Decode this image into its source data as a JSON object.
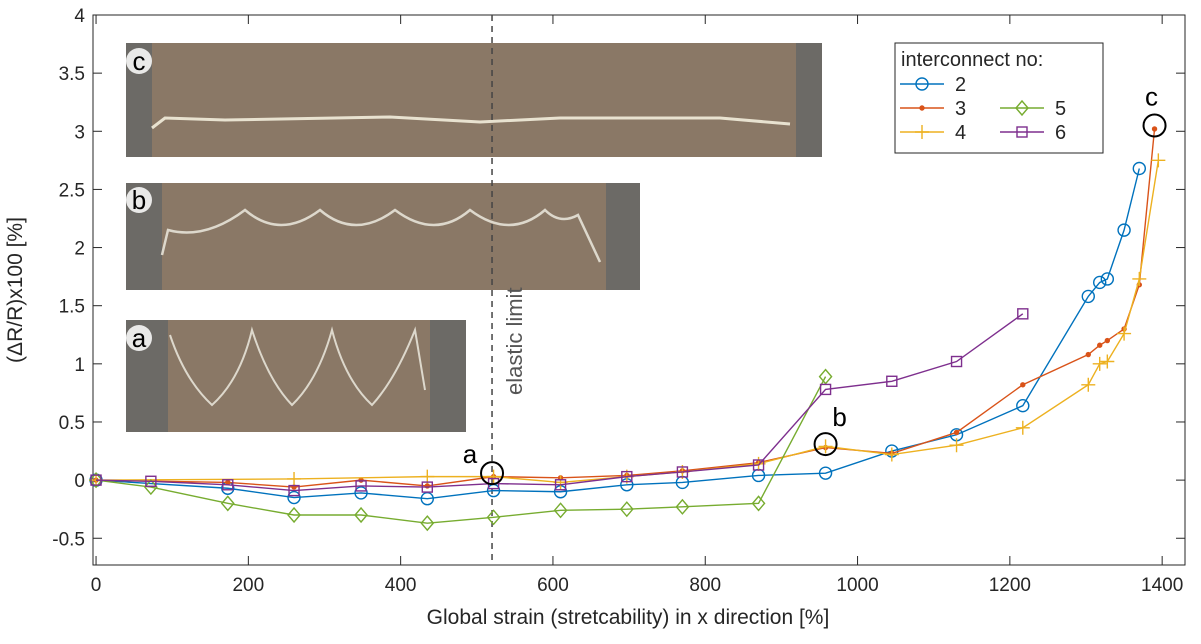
{
  "chart_data": {
    "type": "line",
    "xlabel": "Global strain (stretcability) in x direction [%]",
    "ylabel": "(ΔR/R)x100  [%]",
    "xlim": [
      -4,
      1430
    ],
    "ylim": [
      -0.73,
      4
    ],
    "xticks": [
      0,
      200,
      400,
      600,
      800,
      1000,
      1200,
      1400
    ],
    "yticks": [
      -0.5,
      0,
      0.5,
      1,
      1.5,
      2,
      2.5,
      3,
      3.5,
      4
    ],
    "grid": false,
    "legend_title": "interconnect no:",
    "legend_position": "upper right",
    "series": [
      {
        "name": "2",
        "color": "#0072bd",
        "marker": "circle",
        "x": [
          0,
          173,
          260,
          348,
          435,
          522,
          610,
          697,
          770,
          870,
          958,
          1045,
          1130,
          1217,
          1303,
          1318,
          1328,
          1350,
          1370
        ],
        "values": [
          0,
          -0.07,
          -0.15,
          -0.11,
          -0.16,
          -0.09,
          -0.1,
          -0.04,
          -0.02,
          0.04,
          0.06,
          0.25,
          0.39,
          0.64,
          1.58,
          1.7,
          1.73,
          2.15,
          2.68
        ]
      },
      {
        "name": "3",
        "color": "#d95319",
        "marker": "dot",
        "x": [
          0,
          173,
          260,
          348,
          435,
          522,
          610,
          697,
          770,
          870,
          958,
          1045,
          1130,
          1217,
          1303,
          1318,
          1328,
          1350,
          1370,
          1390
        ],
        "values": [
          0,
          -0.02,
          -0.06,
          0.0,
          -0.05,
          0.03,
          0.02,
          0.04,
          0.08,
          0.15,
          0.28,
          0.23,
          0.41,
          0.82,
          1.08,
          1.16,
          1.2,
          1.3,
          1.68,
          3.02
        ]
      },
      {
        "name": "4",
        "color": "#edb120",
        "marker": "plus",
        "x": [
          0,
          260,
          435,
          522,
          610,
          697,
          770,
          870,
          958,
          1045,
          1130,
          1217,
          1303,
          1318,
          1328,
          1350,
          1370,
          1395
        ],
        "values": [
          0,
          0.01,
          0.03,
          0.03,
          -0.02,
          0.03,
          0.07,
          0.14,
          0.29,
          0.22,
          0.3,
          0.45,
          0.82,
          1.0,
          1.02,
          1.26,
          1.73,
          2.75
        ]
      },
      {
        "name": "5",
        "color": "#77ac30",
        "marker": "diamond",
        "x": [
          0,
          72,
          173,
          260,
          348,
          435,
          522,
          610,
          697,
          770,
          870,
          958
        ],
        "values": [
          0,
          -0.06,
          -0.2,
          -0.3,
          -0.3,
          -0.37,
          -0.32,
          -0.26,
          -0.25,
          -0.23,
          -0.2,
          0.89
        ]
      },
      {
        "name": "6",
        "color": "#7e2f8e",
        "marker": "square",
        "x": [
          0,
          72,
          173,
          260,
          348,
          435,
          522,
          610,
          697,
          770,
          870,
          958,
          1045,
          1130,
          1217
        ],
        "values": [
          0,
          -0.01,
          -0.04,
          -0.09,
          -0.05,
          -0.06,
          -0.03,
          -0.04,
          0.03,
          0.07,
          0.13,
          0.78,
          0.85,
          1.02,
          1.43
        ]
      }
    ],
    "vline": {
      "text": "elastic limit",
      "x": 520
    },
    "annotations": [
      {
        "text": "a",
        "x": 520,
        "y": 0.06
      },
      {
        "text": "b",
        "x": 958,
        "y": 0.31
      },
      {
        "text": "c",
        "x": 1390,
        "y": 3.05
      }
    ],
    "insets": [
      {
        "label": "c"
      },
      {
        "label": "b"
      },
      {
        "label": "a"
      }
    ]
  }
}
